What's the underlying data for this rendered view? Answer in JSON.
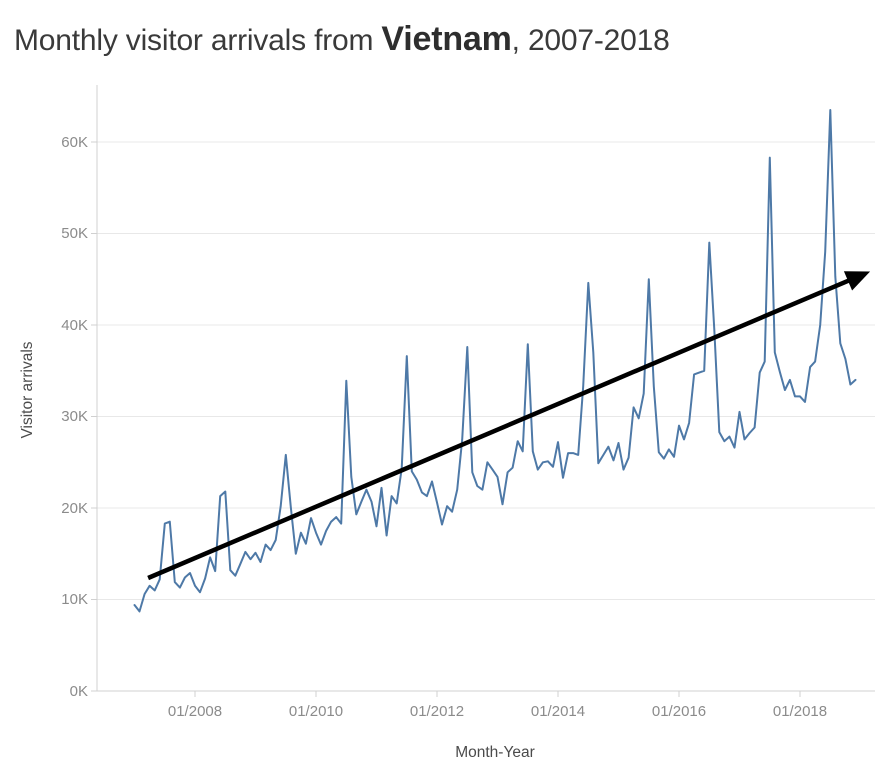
{
  "title": {
    "prefix": "Monthly visitor arrivals from ",
    "highlight": "Vietnam",
    "suffix": ", 2007-2018"
  },
  "chart_data": {
    "type": "line",
    "title": "Monthly visitor arrivals from Vietnam, 2007-2018",
    "xlabel": "Month-Year",
    "ylabel": "Visitor arrivals",
    "grid": "horizontal",
    "legend": "none",
    "line_color": "#4e79a7",
    "annotation_arrow_color": "#000000",
    "x_start": "01/2007",
    "x_end": "12/2018",
    "x_tick_labels": [
      "01/2008",
      "01/2010",
      "01/2012",
      "01/2014",
      "01/2016",
      "01/2018"
    ],
    "x_tick_month_index": [
      12,
      36,
      60,
      84,
      108,
      132
    ],
    "y_tick_labels": [
      "0K",
      "10K",
      "20K",
      "30K",
      "40K",
      "50K",
      "60K"
    ],
    "y_tick_values": [
      0,
      10000,
      20000,
      30000,
      40000,
      50000,
      60000
    ],
    "ylim": [
      0,
      66000
    ],
    "series": [
      {
        "name": "Visitor arrivals",
        "start_month": "2007-01",
        "frequency": "monthly",
        "values": [
          9400,
          8700,
          10600,
          11500,
          11000,
          12200,
          18300,
          18500,
          11900,
          11300,
          12400,
          12900,
          11500,
          10800,
          12300,
          14600,
          13100,
          21300,
          21800,
          13200,
          12600,
          13900,
          15200,
          14400,
          15100,
          14100,
          16000,
          15400,
          16500,
          20200,
          25800,
          20100,
          15000,
          17300,
          16100,
          18900,
          17300,
          16000,
          17500,
          18500,
          19000,
          18300,
          33900,
          23400,
          19300,
          20700,
          22000,
          20700,
          18000,
          22200,
          17000,
          21300,
          20500,
          24300,
          36600,
          24000,
          23100,
          21700,
          21300,
          22900,
          20600,
          18200,
          20200,
          19600,
          22000,
          27500,
          37600,
          23900,
          22400,
          22000,
          25000,
          24200,
          23400,
          20400,
          23900,
          24400,
          27300,
          26200,
          37900,
          26200,
          24200,
          25000,
          25100,
          24500,
          27200,
          23300,
          26000,
          26000,
          25800,
          33300,
          44600,
          37000,
          24900,
          25800,
          26700,
          25200,
          27100,
          24200,
          25500,
          31000,
          29800,
          32500,
          45000,
          33300,
          26100,
          25400,
          26400,
          25600,
          29000,
          27500,
          29300,
          34600,
          34800,
          35000,
          49000,
          39500,
          28300,
          27300,
          27800,
          26600,
          30500,
          27500,
          28200,
          28800,
          34800,
          36000,
          58300,
          37000,
          34900,
          32900,
          34000,
          32200,
          32200,
          31600,
          35400,
          36000,
          40000,
          48000,
          63500,
          45300,
          38000,
          36300,
          33500,
          34000
        ]
      }
    ],
    "annotation_arrow": {
      "description": "upward trend arrow",
      "from_month_index": 2.7,
      "from_value": 12350,
      "to_month_index": 145.9,
      "to_value": 45850
    }
  }
}
